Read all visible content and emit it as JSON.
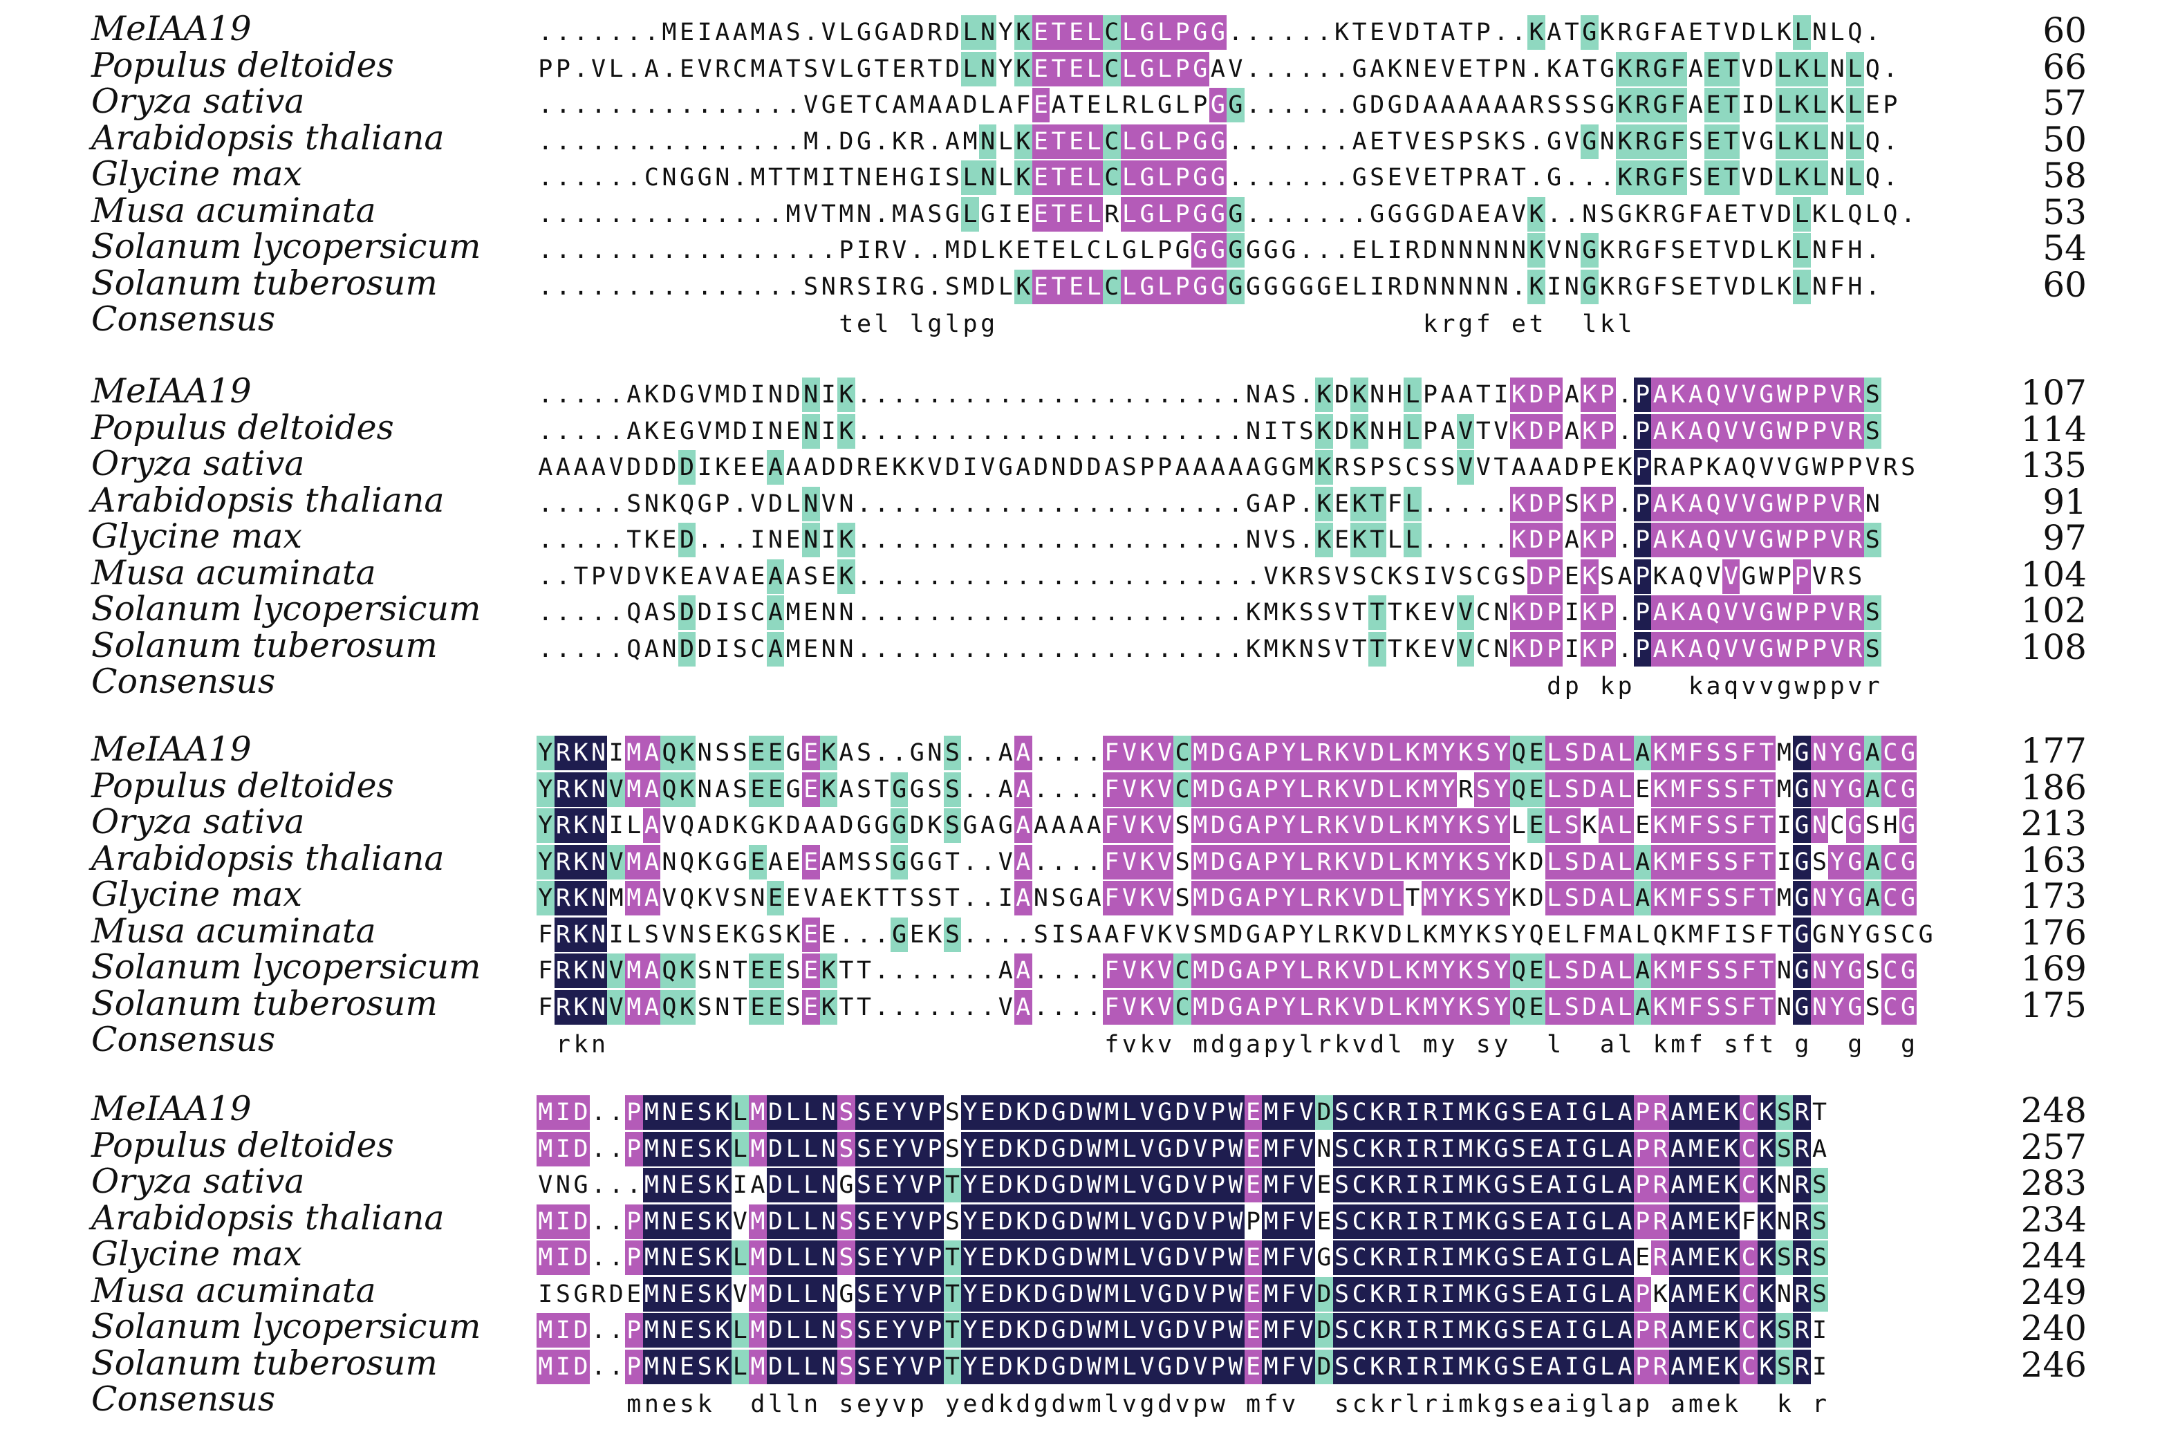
{
  "colors": {
    "similar": "#8fd8c0",
    "high_similarity": "#b45bb8",
    "identical": "#1e1d4f"
  },
  "blocks": [
    {
      "rows": [
        {
          "label": "MeIAA19",
          "seq": ".......MEIAAMAS.VLGGADRDLNYKETELCLGLPGG......KTEVDTATP..KATGKRGFAETVDLKLNLQ.",
          "count": "60"
        },
        {
          "label": "Populus deltoides",
          "seq": "PP.VL.A.EVRCMATSVLGTERTDLNYKETELCLGLPGAV......GAKNEVETPN.KATGKRGFAETVDLKLNLQ.",
          "count": "66"
        },
        {
          "label": "Oryza sativa",
          "seq": "...............VGETCAMAADLAFEATELRLGLPGG......GDGDAAAAAARSSSGKRGFAETIDLKLKLEP",
          "count": "57"
        },
        {
          "label": "Arabidopsis thaliana",
          "seq": "...............M.DG.KR.AMNLKETELCLGLPGG.......AETVESPSKS.GVGNKRGFSETVGLKLNLQ.",
          "count": "50"
        },
        {
          "label": "Glycine max",
          "seq": "......CNGGN.MTTMITNEHGISLNLKETELCLGLPGG.......GSEVETPRAT.G...KRGFSETVDLKLNLQ.",
          "count": "58"
        },
        {
          "label": "Musa acuminata",
          "seq": "..............MVTMN.MASGLGIEETELRLGLPGGG.......GGGGDAEAVK..NSGKRGFAETVDLKLQLQ.",
          "count": "53"
        },
        {
          "label": "Solanum lycopersicum",
          "seq": ".................PIRV..MDLKETELCLGLPGGGGGGG...ELIRDNNNNNKVNGKRGFSETVDLKLNFH.",
          "count": "54"
        },
        {
          "label": "Solanum tuberosum",
          "seq": "...............SNRSIRG.SMDLKETELCLGLPGGGGGGGGELIRDNNNNN.KINGKRGFSETVDLKLNFH.",
          "count": "60"
        }
      ],
      "consensus_label": "Consensus",
      "consensus_seq": "                 tel lglpg                        krgf et  lkl"
    },
    {
      "rows": [
        {
          "label": "MeIAA19",
          "seq": ".....AKDGVMDINDNIK......................NAS.KDKNHLPAATIKDPAKP.PAKAQVVGWPPVRS",
          "count": "107"
        },
        {
          "label": "Populus deltoides",
          "seq": ".....AKEGVMDINENIK......................NITSKDKNHLPAVTVKDPAKP.PAKAQVVGWPPVRS",
          "count": "114"
        },
        {
          "label": "Oryza sativa",
          "seq": "AAAAVDDDDIKEEAAADDREKKVDIVGADNDDASPPAAAAAGGMKRSPSCSSVVTAAADPEKPRAPKAQVVGWPPVRS",
          "count": "135"
        },
        {
          "label": "Arabidopsis thaliana",
          "seq": ".....SNKQGP.VDLNVN......................GAP.KEKTFL.....KDPSKP.PAKAQVVGWPPVRN",
          "count": "91"
        },
        {
          "label": "Glycine max",
          "seq": ".....TKED...INENIK......................NVS.KEKTLL.....KDPAKP.PAKAQVVGWPPVRS",
          "count": "97"
        },
        {
          "label": "Musa acuminata",
          "seq": "..TPVDVKEAVAEAASEK.......................VKRSVSCKSIVSCGSDPEKSAPKAQVVGWPPVRS",
          "count": "104"
        },
        {
          "label": "Solanum lycopersicum",
          "seq": ".....QASDDISCAMENN......................KMKSSVTTTKEVVCNKDPIKP.PAKAQVVGWPPVRS",
          "count": "102"
        },
        {
          "label": "Solanum tuberosum",
          "seq": ".....QANDDISCAMENN......................KMKNSVTTTKEVVCNKDPIKP.PAKAQVVGWPPVRS",
          "count": "108"
        }
      ],
      "consensus_label": "Consensus",
      "consensus_seq": "                                                         dp kp   kaqvvgwppvr"
    },
    {
      "rows": [
        {
          "label": "MeIAA19",
          "seq": "YRKNIMAQKNSSEEGEKAS..GNS..AA....FVKVCMDGAPYLRKVDLKMYKSYQELSDALAKMFSSFTMGNYGACG",
          "count": "177"
        },
        {
          "label": "Populus deltoides",
          "seq": "YRKNVMAQKNASEEGEKASTGGSS..AA....FVKVCMDGAPYLRKVDLKMYRSYQELSDALEKMFSSFTMGNYGACG",
          "count": "186"
        },
        {
          "label": "Oryza sativa",
          "seq": "YRKNILAVQADKGKDAADGGGDKSGAGAAAAAFVKVSMDGAPYLRKVDLKMYKSYLELSKALEKMFSSFTIGNCGSHG",
          "count": "213"
        },
        {
          "label": "Arabidopsis thaliana",
          "seq": "YRKNVMANQKGGEAEEAMSSGGGT..VA....FVKVSMDGAPYLRKVDLKMYKSYKDLSDALAKMFSSFTIGSYGACG",
          "count": "163"
        },
        {
          "label": "Glycine max",
          "seq": "YRKNMMAVQKVSNEEVAEKTTSST..IANSGAFVKVSMDGAPYLRKVDLTMYKSYKDLSDALAKMFSSFTMGNYGACG",
          "count": "173"
        },
        {
          "label": "Musa acuminata",
          "seq": "FRKNILSVNSEKGSKEE...GEKS....SISAAFVKVSMDGAPYLRKVDLKMYKSYQELFMALQKMFISFTGGNYGSCG",
          "count": "176"
        },
        {
          "label": "Solanum lycopersicum",
          "seq": "FRKNVMAQKSNTEESEKTT.......AA....FVKVCMDGAPYLRKVDLKMYKSYQELSDALAKMFSSFTNGNYGSCG",
          "count": "169"
        },
        {
          "label": "Solanum tuberosum",
          "seq": "FRKNVMAQKSNTEESEKTT.......VA....FVKVCMDGAPYLRKVDLKMYKSYQELSDALAKMFSSFTNGNYGSCG",
          "count": "175"
        }
      ],
      "consensus_label": "Consensus",
      "consensus_seq": " rkn                            fvkv mdgapylrkvdl my sy  l  al kmf sft g  g  g"
    },
    {
      "rows": [
        {
          "label": "MeIAA19",
          "seq": "MID..PMNESKLMDLLNSSEYVPSYEDKDGDWMLVGDVPWEMFVDSCKRIRIMKGSEAIGLAPRAMEKCKSRT",
          "count": "248"
        },
        {
          "label": "Populus deltoides",
          "seq": "MID..PMNESKLMDLLNSSEYVPSYEDKDGDWMLVGDVPWEMFVNSCKRIRIMKGSEAIGLAPRAMEKCKSRA",
          "count": "257"
        },
        {
          "label": "Oryza sativa",
          "seq": "VNG...MNESKIADLLNGSEYVPTYEDKDGDWMLVGDVPWEMFVESCKRIRIMKGSEAIGLAPRAMEKCKNRS",
          "count": "283"
        },
        {
          "label": "Arabidopsis thaliana",
          "seq": "MID..PMNESKVMDLLNSSEYVPSYEDKDGDWMLVGDVPWPMFVESCKRIRIMKGSEAIGLAPRAMEKFKNRS",
          "count": "234"
        },
        {
          "label": "Glycine max",
          "seq": "MID..PMNESKLMDLLNSSEYVPTYEDKDGDWMLVGDVPWEMFVGSCKRIRIMKGSEAIGLAERAMEKCKSRS",
          "count": "244"
        },
        {
          "label": "Musa acuminata",
          "seq": "ISGRDEMNESKVMDLLNGSEYVPTYEDKDGDWMLVGDVPWEMFVDSCKRIRIMKGSEAIGLAPKAMEKCKNRS",
          "count": "249"
        },
        {
          "label": "Solanum lycopersicum",
          "seq": "MID..PMNESKLMDLLNSSEYVPTYEDKDGDWMLVGDVPWEMFVDSCKRIRIMKGSEAIGLAPRAMEKCKSRI",
          "count": "240"
        },
        {
          "label": "Solanum tuberosum",
          "seq": "MID..PMNESKLMDLLNSSEYVPTYEDKDGDWMLVGDVPWEMFVDSCKRIRIMKGSEAIGLAPRAMEKCKSRI",
          "count": "246"
        }
      ],
      "consensus_label": "Consensus",
      "consensus_seq": "     mnesk  dlln seyvp yedkdgdwmlvgdvpw mfv  sckrlrimkgseaiglap amek  k r"
    }
  ]
}
